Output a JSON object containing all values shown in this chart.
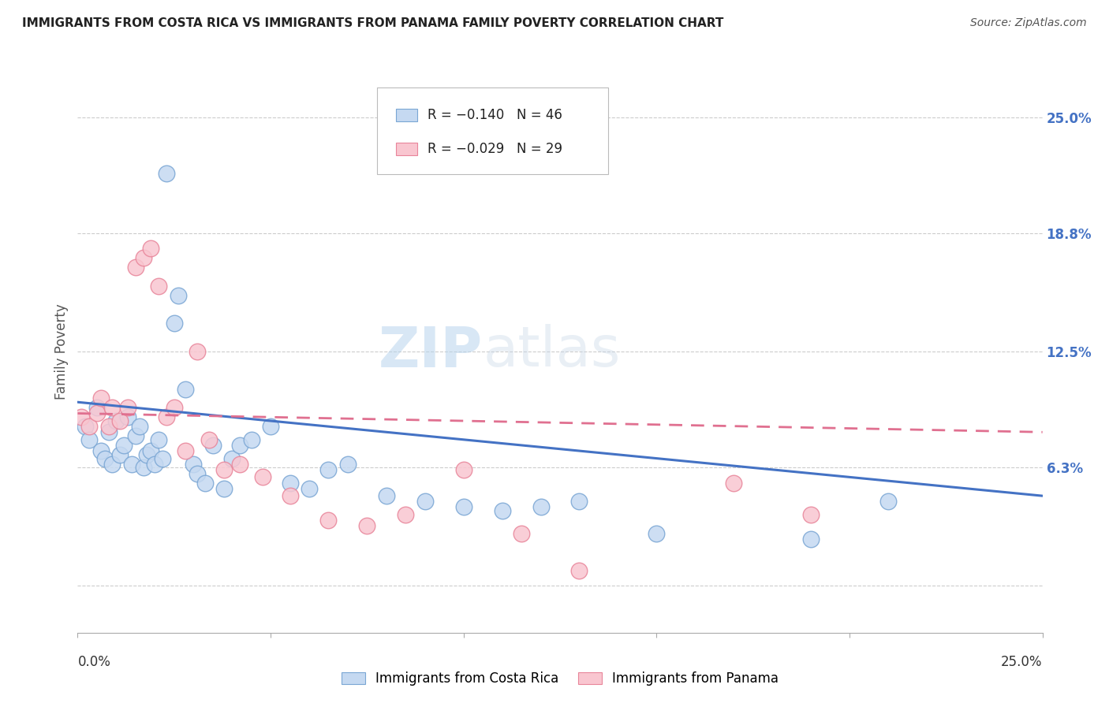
{
  "title": "IMMIGRANTS FROM COSTA RICA VS IMMIGRANTS FROM PANAMA FAMILY POVERTY CORRELATION CHART",
  "source": "Source: ZipAtlas.com",
  "ylabel": "Family Poverty",
  "ytick_values": [
    0.0,
    0.063,
    0.125,
    0.188,
    0.25
  ],
  "ytick_labels": [
    "",
    "6.3%",
    "12.5%",
    "18.8%",
    "25.0%"
  ],
  "xmin": 0.0,
  "xmax": 0.25,
  "ymin": -0.025,
  "ymax": 0.275,
  "legend_r1": "R = −0.140",
  "legend_n1": "N = 46",
  "legend_r2": "R = −0.029",
  "legend_n2": "N = 29",
  "color_blue_fill": "#c5d9f1",
  "color_blue_edge": "#7aa6d4",
  "color_pink_fill": "#f9c6d0",
  "color_pink_edge": "#e8859a",
  "color_blue_line": "#4472c4",
  "color_pink_line": "#e07090",
  "label_costa_rica": "Immigrants from Costa Rica",
  "label_panama": "Immigrants from Panama",
  "cr_x": [
    0.002,
    0.003,
    0.005,
    0.006,
    0.007,
    0.008,
    0.009,
    0.01,
    0.011,
    0.012,
    0.013,
    0.014,
    0.015,
    0.016,
    0.017,
    0.018,
    0.019,
    0.02,
    0.021,
    0.022,
    0.023,
    0.025,
    0.026,
    0.028,
    0.03,
    0.031,
    0.033,
    0.035,
    0.038,
    0.04,
    0.042,
    0.045,
    0.05,
    0.055,
    0.06,
    0.065,
    0.07,
    0.08,
    0.09,
    0.1,
    0.11,
    0.12,
    0.13,
    0.15,
    0.19,
    0.21
  ],
  "cr_y": [
    0.085,
    0.078,
    0.095,
    0.072,
    0.068,
    0.082,
    0.065,
    0.088,
    0.07,
    0.075,
    0.09,
    0.065,
    0.08,
    0.085,
    0.063,
    0.07,
    0.072,
    0.065,
    0.078,
    0.068,
    0.22,
    0.14,
    0.155,
    0.105,
    0.065,
    0.06,
    0.055,
    0.075,
    0.052,
    0.068,
    0.075,
    0.078,
    0.085,
    0.055,
    0.052,
    0.062,
    0.065,
    0.048,
    0.045,
    0.042,
    0.04,
    0.042,
    0.045,
    0.028,
    0.025,
    0.045
  ],
  "pan_x": [
    0.001,
    0.003,
    0.005,
    0.006,
    0.008,
    0.009,
    0.011,
    0.013,
    0.015,
    0.017,
    0.019,
    0.021,
    0.023,
    0.025,
    0.028,
    0.031,
    0.034,
    0.038,
    0.042,
    0.048,
    0.055,
    0.065,
    0.075,
    0.085,
    0.1,
    0.115,
    0.13,
    0.17,
    0.19
  ],
  "pan_y": [
    0.09,
    0.085,
    0.092,
    0.1,
    0.085,
    0.095,
    0.088,
    0.095,
    0.17,
    0.175,
    0.18,
    0.16,
    0.09,
    0.095,
    0.072,
    0.125,
    0.078,
    0.062,
    0.065,
    0.058,
    0.048,
    0.035,
    0.032,
    0.038,
    0.062,
    0.028,
    0.008,
    0.055,
    0.038
  ],
  "cr_line_x0": 0.0,
  "cr_line_x1": 0.25,
  "cr_line_y0": 0.098,
  "cr_line_y1": 0.048,
  "pan_line_x0": 0.0,
  "pan_line_x1": 0.25,
  "pan_line_y0": 0.092,
  "pan_line_y1": 0.082
}
